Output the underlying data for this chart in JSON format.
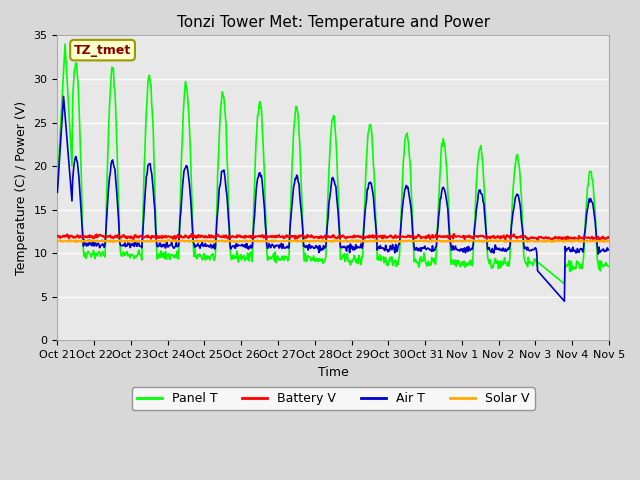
{
  "title": "Tonzi Tower Met: Temperature and Power",
  "xlabel": "Time",
  "ylabel": "Temperature (C) / Power (V)",
  "ylim": [
    0,
    35
  ],
  "yticks": [
    0,
    5,
    10,
    15,
    20,
    25,
    30,
    35
  ],
  "xtick_labels": [
    "Oct 21",
    "Oct 22",
    "Oct 23",
    "Oct 24",
    "Oct 25",
    "Oct 26",
    "Oct 27",
    "Oct 28",
    "Oct 29",
    "Oct 30",
    "Oct 31",
    "Nov 1",
    "Nov 2",
    "Nov 3",
    "Nov 4",
    "Nov 5"
  ],
  "background_color": "#d8d8d8",
  "plot_bg_color": "#e8e8e8",
  "panel_t_color": "#00ff00",
  "battery_v_color": "#ff0000",
  "air_t_color": "#0000cc",
  "solar_v_color": "#ffaa00",
  "annotation_text": "TZ_tmet",
  "annotation_bg": "#ffffcc",
  "annotation_border": "#999900",
  "annotation_text_color": "#880000",
  "legend_labels": [
    "Panel T",
    "Battery V",
    "Air T",
    "Solar V"
  ]
}
